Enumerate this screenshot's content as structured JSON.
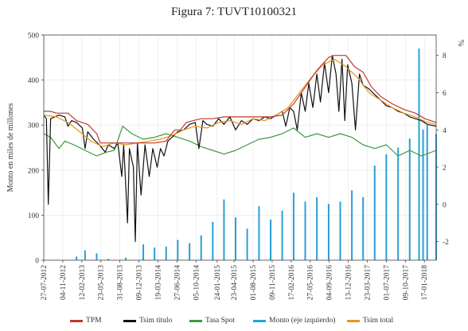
{
  "figure_title": "Figura 7: TUVT10100321",
  "chart_data": {
    "type": "line",
    "title": "Figura 7: TUVT10100321",
    "ylabel": "Monto en miles de millones",
    "y2label": "%",
    "ylim": [
      0,
      500
    ],
    "y2lim": [
      -3,
      9.1
    ],
    "yticks": [
      0,
      100,
      200,
      300,
      400,
      500
    ],
    "y2ticks": [
      -2,
      0,
      2,
      4,
      6,
      8
    ],
    "xlim": [
      "2012-07-27",
      "2018-03-20"
    ],
    "xticks": [
      "27-07-2012",
      "04-11-2012",
      "12-02-2013",
      "23-05-2013",
      "31-08-2013",
      "09-12-2013",
      "19-03-2014",
      "27-06-2014",
      "05-10-2014",
      "24-01-2015",
      "23-04-2015",
      "01-08-2015",
      "09-11-2015",
      "17-02-2016",
      "27-05-2016",
      "04-09-2016",
      "13-12-2016",
      "23-03-2017",
      "01-07-2017",
      "09-10-2017",
      "17-01-2018"
    ],
    "grid": true,
    "legend_position": "bottom",
    "series": [
      {
        "name": "TPM",
        "axis": "right",
        "color": "#c0392b",
        "points": [
          [
            "2012-07-27",
            5.0
          ],
          [
            "2012-09-01",
            5.0
          ],
          [
            "2012-10-01",
            4.9
          ],
          [
            "2012-12-01",
            4.9
          ],
          [
            "2013-01-15",
            4.5
          ],
          [
            "2013-03-15",
            4.3
          ],
          [
            "2013-05-01",
            3.8
          ],
          [
            "2013-05-20",
            3.3
          ],
          [
            "2013-09-01",
            3.3
          ],
          [
            "2013-12-01",
            3.3
          ],
          [
            "2014-03-01",
            3.3
          ],
          [
            "2014-05-01",
            3.4
          ],
          [
            "2014-06-15",
            4.0
          ],
          [
            "2014-07-15",
            4.0
          ],
          [
            "2014-08-15",
            4.4
          ],
          [
            "2014-09-20",
            4.5
          ],
          [
            "2014-11-01",
            4.6
          ],
          [
            "2015-01-01",
            4.6
          ],
          [
            "2015-03-01",
            4.7
          ],
          [
            "2015-05-01",
            4.7
          ],
          [
            "2015-08-01",
            4.7
          ],
          [
            "2015-11-01",
            4.7
          ],
          [
            "2016-01-01",
            4.8
          ],
          [
            "2016-03-01",
            5.4
          ],
          [
            "2016-05-01",
            6.3
          ],
          [
            "2016-07-01",
            7.2
          ],
          [
            "2016-09-01",
            7.9
          ],
          [
            "2016-10-01",
            8.0
          ],
          [
            "2016-12-01",
            8.0
          ],
          [
            "2017-01-15",
            7.4
          ],
          [
            "2017-03-01",
            7.1
          ],
          [
            "2017-04-15",
            6.3
          ],
          [
            "2017-06-01",
            5.8
          ],
          [
            "2017-08-01",
            5.4
          ],
          [
            "2017-10-01",
            5.1
          ],
          [
            "2017-12-01",
            4.9
          ],
          [
            "2018-01-20",
            4.6
          ],
          [
            "2018-03-20",
            4.4
          ]
        ]
      },
      {
        "name": "Tsim título",
        "axis": "right",
        "color": "#111111",
        "points": [
          [
            "2012-07-27",
            4.8
          ],
          [
            "2012-08-10",
            4.6
          ],
          [
            "2012-08-20",
            0.0
          ],
          [
            "2012-09-01",
            4.6
          ],
          [
            "2012-10-15",
            4.8
          ],
          [
            "2012-11-15",
            4.7
          ],
          [
            "2012-12-01",
            4.2
          ],
          [
            "2012-12-20",
            4.5
          ],
          [
            "2013-01-15",
            4.4
          ],
          [
            "2013-02-15",
            4.1
          ],
          [
            "2013-03-01",
            3.0
          ],
          [
            "2013-03-15",
            3.9
          ],
          [
            "2013-04-15",
            3.5
          ],
          [
            "2013-05-15",
            3.2
          ],
          [
            "2013-06-15",
            2.8
          ],
          [
            "2013-07-01",
            3.2
          ],
          [
            "2013-08-01",
            3.0
          ],
          [
            "2013-08-20",
            3.3
          ],
          [
            "2013-09-10",
            1.5
          ],
          [
            "2013-09-20",
            3.2
          ],
          [
            "2013-10-01",
            1.0
          ],
          [
            "2013-10-10",
            -1.0
          ],
          [
            "2013-10-20",
            3.0
          ],
          [
            "2013-11-10",
            2.0
          ],
          [
            "2013-11-20",
            -2.0
          ],
          [
            "2013-12-01",
            3.3
          ],
          [
            "2013-12-20",
            0.5
          ],
          [
            "2014-01-10",
            3.2
          ],
          [
            "2014-02-01",
            1.5
          ],
          [
            "2014-02-20",
            3.0
          ],
          [
            "2014-03-15",
            2.0
          ],
          [
            "2014-04-01",
            3.0
          ],
          [
            "2014-04-20",
            2.6
          ],
          [
            "2014-05-10",
            3.4
          ],
          [
            "2014-06-01",
            3.6
          ],
          [
            "2014-07-01",
            3.9
          ],
          [
            "2014-08-01",
            4.0
          ],
          [
            "2014-09-01",
            4.3
          ],
          [
            "2014-10-01",
            4.4
          ],
          [
            "2014-10-20",
            3.0
          ],
          [
            "2014-11-10",
            4.5
          ],
          [
            "2014-12-01",
            4.3
          ],
          [
            "2015-01-01",
            4.2
          ],
          [
            "2015-02-01",
            4.6
          ],
          [
            "2015-03-01",
            4.3
          ],
          [
            "2015-04-01",
            4.7
          ],
          [
            "2015-05-01",
            4.0
          ],
          [
            "2015-06-01",
            4.5
          ],
          [
            "2015-07-01",
            4.3
          ],
          [
            "2015-08-01",
            4.6
          ],
          [
            "2015-09-01",
            4.5
          ],
          [
            "2015-10-01",
            4.7
          ],
          [
            "2015-11-01",
            4.6
          ],
          [
            "2015-12-01",
            4.8
          ],
          [
            "2016-01-01",
            5.0
          ],
          [
            "2016-01-20",
            4.2
          ],
          [
            "2016-02-10",
            5.2
          ],
          [
            "2016-03-01",
            5.0
          ],
          [
            "2016-03-20",
            4.0
          ],
          [
            "2016-04-10",
            6.0
          ],
          [
            "2016-05-01",
            5.0
          ],
          [
            "2016-05-20",
            6.5
          ],
          [
            "2016-06-10",
            5.2
          ],
          [
            "2016-07-01",
            7.0
          ],
          [
            "2016-07-20",
            5.5
          ],
          [
            "2016-08-10",
            7.6
          ],
          [
            "2016-09-01",
            6.0
          ],
          [
            "2016-09-20",
            8.0
          ],
          [
            "2016-10-10",
            7.0
          ],
          [
            "2016-10-25",
            5.0
          ],
          [
            "2016-11-10",
            7.8
          ],
          [
            "2016-11-25",
            4.5
          ],
          [
            "2016-12-10",
            7.5
          ],
          [
            "2017-01-01",
            6.5
          ],
          [
            "2017-01-20",
            4.0
          ],
          [
            "2017-02-10",
            7.0
          ],
          [
            "2017-03-01",
            6.4
          ],
          [
            "2017-04-01",
            6.2
          ],
          [
            "2017-05-01",
            5.9
          ],
          [
            "2017-06-01",
            5.6
          ],
          [
            "2017-07-01",
            5.3
          ],
          [
            "2017-08-01",
            5.2
          ],
          [
            "2017-09-01",
            5.0
          ],
          [
            "2017-10-01",
            4.9
          ],
          [
            "2017-11-01",
            4.7
          ],
          [
            "2017-12-01",
            4.6
          ],
          [
            "2018-01-01",
            4.5
          ],
          [
            "2018-02-01",
            4.3
          ],
          [
            "2018-03-20",
            4.2
          ]
        ]
      },
      {
        "name": "Tasa Spot",
        "axis": "right",
        "color": "#3c9a3c",
        "points": [
          [
            "2012-07-27",
            3.8
          ],
          [
            "2012-09-01",
            3.6
          ],
          [
            "2012-10-15",
            3.0
          ],
          [
            "2012-11-15",
            3.4
          ],
          [
            "2013-01-01",
            3.2
          ],
          [
            "2013-03-01",
            2.9
          ],
          [
            "2013-05-01",
            2.6
          ],
          [
            "2013-06-20",
            2.8
          ],
          [
            "2013-08-01",
            2.9
          ],
          [
            "2013-09-15",
            4.2
          ],
          [
            "2013-11-01",
            3.8
          ],
          [
            "2014-01-01",
            3.5
          ],
          [
            "2014-03-01",
            3.6
          ],
          [
            "2014-05-01",
            3.8
          ],
          [
            "2014-07-01",
            3.6
          ],
          [
            "2014-09-01",
            3.4
          ],
          [
            "2014-11-01",
            3.1
          ],
          [
            "2015-01-01",
            2.9
          ],
          [
            "2015-03-01",
            2.7
          ],
          [
            "2015-05-01",
            2.9
          ],
          [
            "2015-07-01",
            3.2
          ],
          [
            "2015-09-01",
            3.5
          ],
          [
            "2015-11-01",
            3.6
          ],
          [
            "2016-01-01",
            3.8
          ],
          [
            "2016-03-01",
            4.1
          ],
          [
            "2016-05-01",
            3.6
          ],
          [
            "2016-07-01",
            3.8
          ],
          [
            "2016-09-01",
            3.6
          ],
          [
            "2016-11-01",
            3.8
          ],
          [
            "2017-01-01",
            3.6
          ],
          [
            "2017-03-01",
            3.2
          ],
          [
            "2017-05-01",
            3.0
          ],
          [
            "2017-07-01",
            3.2
          ],
          [
            "2017-09-01",
            2.6
          ],
          [
            "2017-11-01",
            2.9
          ],
          [
            "2018-01-01",
            2.6
          ],
          [
            "2018-03-20",
            2.9
          ]
        ]
      },
      {
        "name": "Monto (eje izquierdo)",
        "axis": "left",
        "color": "#2a9fd6",
        "points": [
          [
            "2012-07-27",
            0
          ],
          [
            "2013-01-15",
            8
          ],
          [
            "2013-03-01",
            22
          ],
          [
            "2013-05-01",
            15
          ],
          [
            "2013-07-01",
            3
          ],
          [
            "2013-10-01",
            6
          ],
          [
            "2014-01-01",
            35
          ],
          [
            "2014-03-01",
            28
          ],
          [
            "2014-05-01",
            30
          ],
          [
            "2014-07-01",
            45
          ],
          [
            "2014-09-01",
            38
          ],
          [
            "2014-11-01",
            55
          ],
          [
            "2015-01-01",
            85
          ],
          [
            "2015-03-01",
            135
          ],
          [
            "2015-05-01",
            95
          ],
          [
            "2015-07-01",
            70
          ],
          [
            "2015-09-01",
            120
          ],
          [
            "2015-11-01",
            90
          ],
          [
            "2016-01-01",
            110
          ],
          [
            "2016-03-01",
            150
          ],
          [
            "2016-05-01",
            130
          ],
          [
            "2016-07-01",
            140
          ],
          [
            "2016-09-01",
            125
          ],
          [
            "2016-11-01",
            130
          ],
          [
            "2017-01-01",
            155
          ],
          [
            "2017-03-01",
            140
          ],
          [
            "2017-05-01",
            210
          ],
          [
            "2017-07-01",
            235
          ],
          [
            "2017-09-01",
            250
          ],
          [
            "2017-11-01",
            270
          ],
          [
            "2017-12-20",
            470
          ],
          [
            "2018-01-10",
            290
          ],
          [
            "2018-02-01",
            300
          ],
          [
            "2018-03-20",
            280
          ]
        ]
      },
      {
        "name": "Tsim total",
        "axis": "right",
        "color": "#e69520",
        "points": [
          [
            "2012-07-27",
            4.8
          ],
          [
            "2012-10-01",
            4.7
          ],
          [
            "2012-12-01",
            4.4
          ],
          [
            "2013-02-01",
            3.9
          ],
          [
            "2013-04-01",
            3.4
          ],
          [
            "2013-06-01",
            3.1
          ],
          [
            "2013-08-01",
            3.3
          ],
          [
            "2013-10-01",
            3.2
          ],
          [
            "2013-12-01",
            3.3
          ],
          [
            "2014-02-01",
            3.4
          ],
          [
            "2014-04-01",
            3.5
          ],
          [
            "2014-06-01",
            3.7
          ],
          [
            "2014-08-01",
            4.0
          ],
          [
            "2014-10-01",
            4.2
          ],
          [
            "2014-12-01",
            4.1
          ],
          [
            "2015-02-01",
            4.4
          ],
          [
            "2015-04-01",
            4.5
          ],
          [
            "2015-06-01",
            4.3
          ],
          [
            "2015-08-01",
            4.6
          ],
          [
            "2015-10-01",
            4.5
          ],
          [
            "2015-12-01",
            4.8
          ],
          [
            "2016-02-01",
            5.2
          ],
          [
            "2016-04-01",
            6.0
          ],
          [
            "2016-06-01",
            6.8
          ],
          [
            "2016-08-01",
            7.5
          ],
          [
            "2016-10-01",
            7.8
          ],
          [
            "2016-12-01",
            7.4
          ],
          [
            "2017-02-01",
            6.8
          ],
          [
            "2017-04-01",
            6.0
          ],
          [
            "2017-06-01",
            5.6
          ],
          [
            "2017-08-01",
            5.2
          ],
          [
            "2017-10-01",
            4.9
          ],
          [
            "2017-12-01",
            4.7
          ],
          [
            "2018-02-01",
            4.4
          ],
          [
            "2018-03-20",
            4.3
          ]
        ]
      }
    ]
  }
}
